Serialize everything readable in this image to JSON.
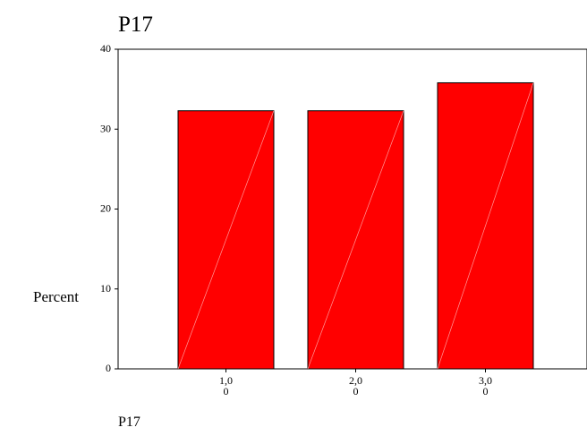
{
  "chart_data": {
    "type": "bar",
    "title": "P17",
    "xlabel": "P17",
    "ylabel": "Percent",
    "categories": [
      "1,0\n0",
      "2,0\n0",
      "3,0\n0"
    ],
    "values": [
      32.3,
      32.3,
      35.8
    ],
    "ylim": [
      0,
      40
    ],
    "yticks": [
      0,
      10,
      20,
      30,
      40
    ],
    "grid": false,
    "colors": {
      "bar_fill": "#ff0000",
      "bar_stroke": "#000000",
      "bar_hatch": "#ff9a9a",
      "axis": "#000000"
    }
  }
}
